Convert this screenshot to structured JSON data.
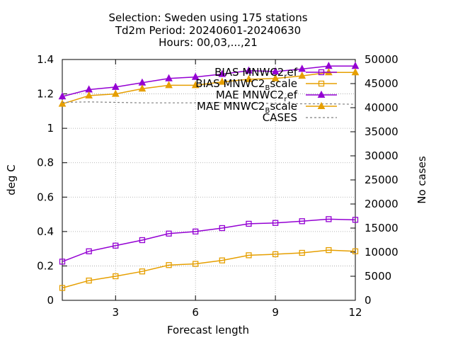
{
  "chart_data": {
    "type": "line",
    "title_lines": [
      "Selection: Sweden using   175 stations",
      "Td2m   Period: 20240601-20240630",
      "Hours: 00,03,...,21"
    ],
    "xlabel": "Forecast length",
    "ylabel": "deg C",
    "y2label": "No cases",
    "xlim": [
      1,
      12
    ],
    "ylim": [
      0,
      1.4
    ],
    "y2lim": [
      0,
      50000
    ],
    "xticks": [
      3,
      6,
      9,
      12
    ],
    "yticks": [
      "0",
      "0.2",
      "0.4",
      "0.6",
      "0.8",
      "1",
      "1.2",
      "1.4"
    ],
    "y2ticks": [
      "0",
      "5000",
      "10000",
      "15000",
      "20000",
      "25000",
      "30000",
      "35000",
      "40000",
      "45000",
      "50000"
    ],
    "grid": true,
    "legend_position": "top-right",
    "x": [
      1,
      2,
      3,
      4,
      5,
      6,
      7,
      8,
      9,
      10,
      11,
      12
    ],
    "series": [
      {
        "name": "BIAS MNWC2_ref",
        "legend_main": "BIAS MNWC2",
        "legend_sub": "r",
        "legend_tail": "ef",
        "color": "#9400d3",
        "marker": "square",
        "axis": "y",
        "values": [
          0.225,
          0.285,
          0.318,
          0.35,
          0.388,
          0.4,
          0.42,
          0.445,
          0.45,
          0.46,
          0.472,
          0.468
        ]
      },
      {
        "name": "BIAS MNWC2_Bscale",
        "legend_main": "BIAS MNWC2",
        "legend_sub": "B",
        "legend_tail": "scale",
        "color": "#e69f00",
        "marker": "square",
        "axis": "y",
        "values": [
          0.072,
          0.115,
          0.14,
          0.168,
          0.205,
          0.212,
          0.232,
          0.262,
          0.268,
          0.276,
          0.292,
          0.285
        ]
      },
      {
        "name": "MAE MNWC2_ref",
        "legend_main": "MAE MNWC2",
        "legend_sub": "r",
        "legend_tail": "ef",
        "color": "#9400d3",
        "marker": "triangle",
        "axis": "y",
        "values": [
          1.185,
          1.225,
          1.24,
          1.265,
          1.29,
          1.298,
          1.315,
          1.335,
          1.33,
          1.345,
          1.362,
          1.362
        ]
      },
      {
        "name": "MAE MNWC2_Bscale",
        "legend_main": "MAE MNWC2",
        "legend_sub": "B",
        "legend_tail": "scale",
        "color": "#e69f00",
        "marker": "triangle",
        "axis": "y",
        "values": [
          1.142,
          1.19,
          1.2,
          1.23,
          1.25,
          1.25,
          1.27,
          1.285,
          1.29,
          1.305,
          1.325,
          1.325
        ]
      },
      {
        "name": "CASES",
        "legend_main": "CASES",
        "legend_sub": "",
        "legend_tail": "",
        "color": "#808080",
        "marker": "none",
        "axis": "y2",
        "values": [
          41100,
          41200,
          41100,
          41000,
          41000,
          41000,
          41000,
          40900,
          40900,
          40800,
          40800,
          40700
        ]
      }
    ]
  }
}
